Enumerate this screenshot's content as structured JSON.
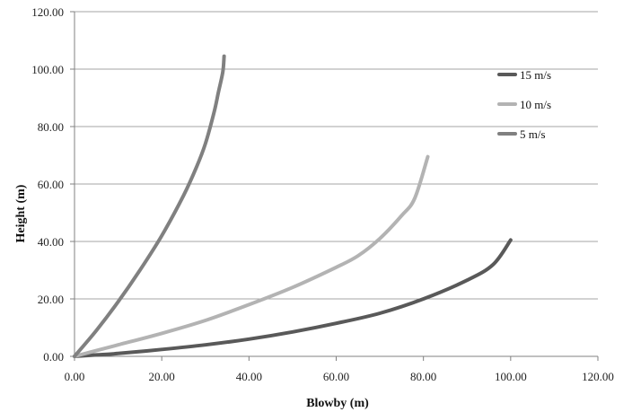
{
  "chart_data": {
    "type": "line",
    "title": "",
    "xlabel": "Blowby (m)",
    "ylabel": "Height (m)",
    "xlim": [
      0,
      120
    ],
    "ylim": [
      0,
      120
    ],
    "x_ticks": [
      "0.00",
      "20.00",
      "40.00",
      "60.00",
      "80.00",
      "100.00",
      "120.00"
    ],
    "y_ticks": [
      "0.00",
      "20.00",
      "40.00",
      "60.00",
      "80.00",
      "100.00",
      "120.00"
    ],
    "grid": "horizontal",
    "legend_position": "right",
    "series": [
      {
        "name": "15 m/s",
        "color": "#595959",
        "x": [
          0,
          5,
          10,
          20,
          30,
          40,
          50,
          60,
          70,
          80,
          90,
          96,
          100
        ],
        "y": [
          0,
          0.5,
          1,
          2.4,
          4,
          6,
          8.5,
          11.5,
          15,
          20,
          26.5,
          32,
          40.5
        ]
      },
      {
        "name": "10 m/s",
        "color": "#b3b3b3",
        "x": [
          0,
          5,
          10,
          20,
          30,
          40,
          50,
          60,
          65,
          70,
          75,
          78,
          81
        ],
        "y": [
          0,
          2,
          4,
          8,
          12.5,
          18,
          24,
          31,
          35,
          41,
          49,
          55,
          69.5
        ]
      },
      {
        "name": "5 m/s",
        "color": "#808080",
        "x": [
          0,
          5,
          10,
          15,
          20,
          25,
          28,
          30,
          32,
          33,
          34,
          34.3
        ],
        "y": [
          0,
          9,
          19,
          30,
          42,
          56,
          66,
          74,
          85,
          92,
          99,
          104.5
        ]
      }
    ]
  }
}
